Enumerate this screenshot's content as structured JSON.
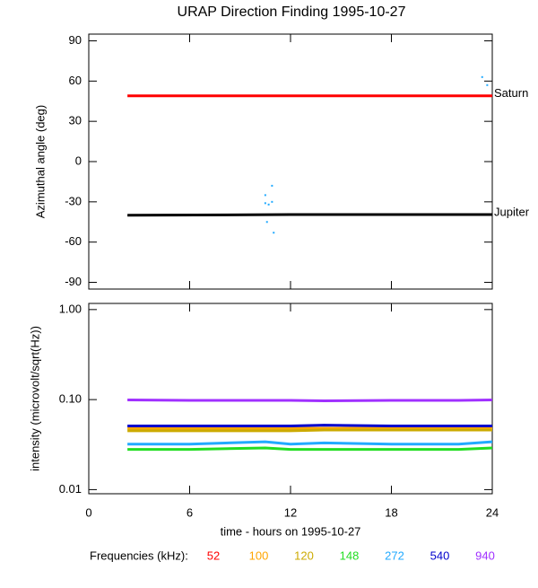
{
  "chart_data": [
    {
      "type": "line",
      "title": "URAP Direction Finding  1995-10-27",
      "ylabel": "Azimuthal angle (deg)",
      "xlim": [
        0,
        24
      ],
      "ylim": [
        -95,
        95
      ],
      "yticks": [
        90,
        60,
        30,
        0,
        -30,
        -60,
        -90
      ],
      "series": [
        {
          "name": "Saturn",
          "color": "#ff0000",
          "x": [
            2.3,
            24
          ],
          "values": [
            49,
            49
          ]
        },
        {
          "name": "Jupiter",
          "color": "#000000",
          "x": [
            2.3,
            12,
            24
          ],
          "values": [
            -40,
            -39.5,
            -39.5
          ]
        }
      ],
      "scatter": {
        "color": "#22aaff",
        "x": [
          10.5,
          10.6,
          10.7,
          10.9,
          10.9,
          11.0,
          10.5,
          23.4,
          23.7
        ],
        "values": [
          -25,
          -45,
          -32,
          -18,
          -30,
          -53,
          -31,
          63,
          57
        ]
      }
    },
    {
      "type": "line",
      "log_scale": true,
      "ylabel": "intensity (microvolt/sqrt(Hz))",
      "xlabel": "time - hours on 1995-10-27",
      "xlim": [
        0,
        24
      ],
      "xticks": [
        0,
        6,
        12,
        18,
        24
      ],
      "ylim": [
        0.009,
        1.17
      ],
      "yticks": [
        {
          "value": 1,
          "label": "1.00"
        },
        {
          "value": 0.1,
          "label": "0.10"
        },
        {
          "value": 0.01,
          "label": "0.01"
        }
      ],
      "legend_title": "Frequencies (kHz):",
      "x": [
        2.3,
        6,
        10.5,
        12,
        14,
        18,
        22,
        24
      ],
      "series": [
        {
          "name": "52",
          "color": "#ff0000",
          "values": [
            null,
            null,
            null,
            null,
            null,
            null,
            null,
            null
          ]
        },
        {
          "name": "100",
          "color": "#ffa500",
          "values": [
            0.048,
            0.048,
            0.048,
            0.048,
            0.048,
            0.048,
            0.048,
            0.048
          ]
        },
        {
          "name": "120",
          "color": "#ccaa00",
          "values": [
            0.045,
            0.045,
            0.045,
            0.045,
            0.046,
            0.046,
            0.046,
            0.046
          ]
        },
        {
          "name": "148",
          "color": "#22dd22",
          "values": [
            0.028,
            0.028,
            0.029,
            0.028,
            0.028,
            0.028,
            0.028,
            0.029
          ]
        },
        {
          "name": "272",
          "color": "#22aaff",
          "values": [
            0.032,
            0.032,
            0.034,
            0.032,
            0.033,
            0.032,
            0.032,
            0.034
          ]
        },
        {
          "name": "540",
          "color": "#0000cc",
          "values": [
            0.051,
            0.051,
            0.051,
            0.051,
            0.052,
            0.051,
            0.051,
            0.051
          ]
        },
        {
          "name": "940",
          "color": "#a030ff",
          "values": [
            0.099,
            0.098,
            0.098,
            0.098,
            0.097,
            0.098,
            0.098,
            0.099
          ]
        }
      ]
    }
  ]
}
